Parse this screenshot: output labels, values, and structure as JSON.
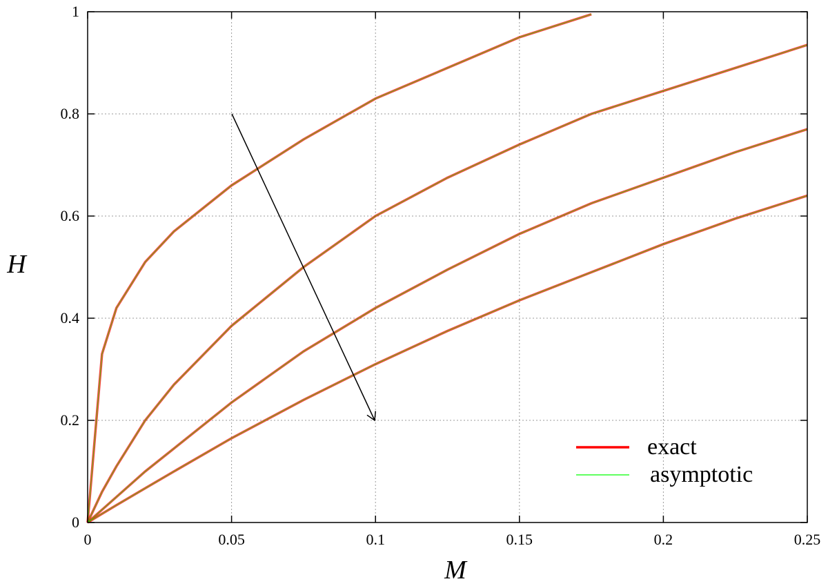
{
  "chart_data": {
    "type": "line",
    "xlabel": "M",
    "ylabel": "H",
    "x": [
      0,
      0.005,
      0.01,
      0.02,
      0.03,
      0.05,
      0.075,
      0.1,
      0.125,
      0.15,
      0.175,
      0.2,
      0.225,
      0.25
    ],
    "series": [
      {
        "name": "exact",
        "color": "#ff0000",
        "curves": [
          [
            0,
            0.33,
            0.42,
            0.51,
            0.57,
            0.66,
            0.75,
            0.83,
            0.89,
            0.95,
            0.995,
            null,
            null,
            null
          ],
          [
            0,
            0.06,
            0.11,
            0.2,
            0.27,
            0.385,
            0.5,
            0.6,
            0.675,
            0.74,
            0.8,
            0.845,
            0.89,
            0.935
          ],
          [
            0,
            0.025,
            0.05,
            0.1,
            0.145,
            0.235,
            0.335,
            0.42,
            0.495,
            0.565,
            0.625,
            0.675,
            0.725,
            0.77
          ],
          [
            0,
            0.017,
            0.034,
            0.067,
            0.1,
            0.165,
            0.24,
            0.31,
            0.375,
            0.435,
            0.49,
            0.545,
            0.595,
            0.64
          ]
        ]
      },
      {
        "name": "asymptotic",
        "color": "#00ff00",
        "curves": [
          [
            0,
            0.33,
            0.42,
            0.51,
            0.57,
            0.66,
            0.75,
            0.83,
            0.89,
            0.95,
            0.995,
            null,
            null,
            null
          ],
          [
            0,
            0.06,
            0.11,
            0.2,
            0.27,
            0.385,
            0.5,
            0.6,
            0.675,
            0.74,
            0.8,
            0.845,
            0.89,
            0.935
          ],
          [
            0,
            0.025,
            0.05,
            0.1,
            0.145,
            0.235,
            0.335,
            0.42,
            0.495,
            0.565,
            0.625,
            0.675,
            0.725,
            0.77
          ],
          [
            0,
            0.017,
            0.034,
            0.067,
            0.1,
            0.165,
            0.24,
            0.31,
            0.375,
            0.435,
            0.49,
            0.545,
            0.595,
            0.64
          ]
        ]
      }
    ],
    "xlim": [
      0,
      0.25
    ],
    "ylim": [
      0,
      1
    ],
    "xticks": [
      0,
      0.05,
      0.1,
      0.15,
      0.2,
      0.25
    ],
    "yticks": [
      0,
      0.2,
      0.4,
      0.6,
      0.8,
      1
    ],
    "grid": true,
    "legend": "lower right"
  }
}
